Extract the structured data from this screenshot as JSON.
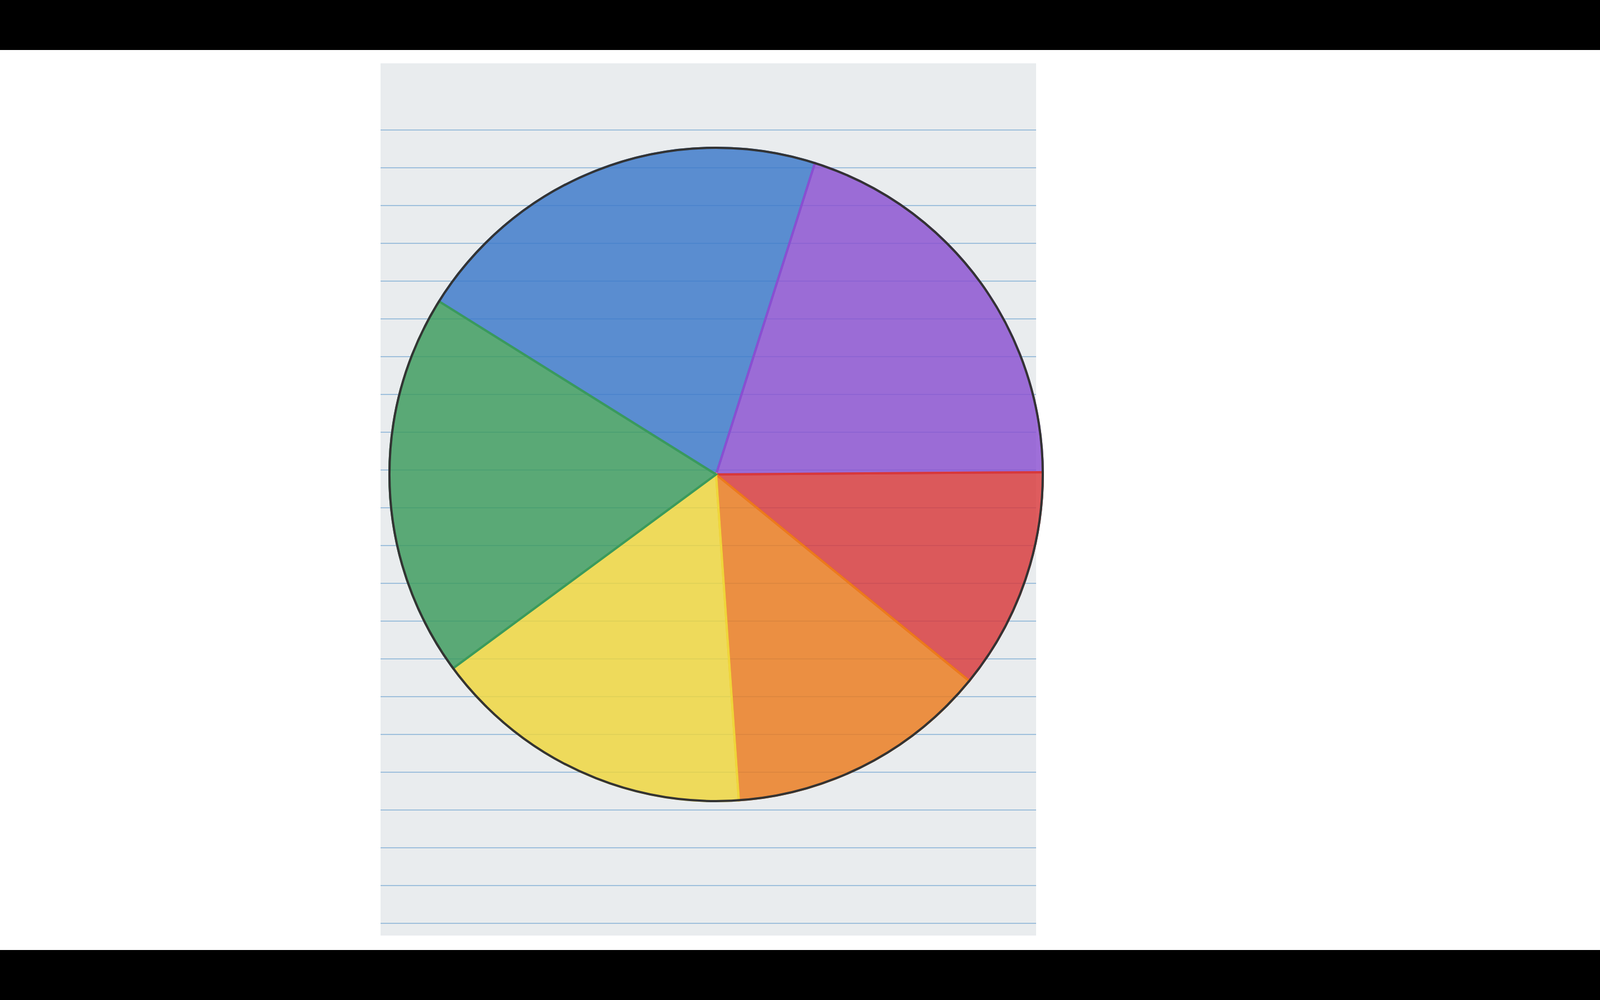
{
  "chart_data": {
    "type": "pie",
    "values": [
      21,
      20,
      11,
      13,
      16,
      19
    ],
    "colors": [
      "#3a78c9",
      "#8a4fd1",
      "#d8383a",
      "#ec7a1c",
      "#efd63a",
      "#3a9a5c"
    ]
  }
}
